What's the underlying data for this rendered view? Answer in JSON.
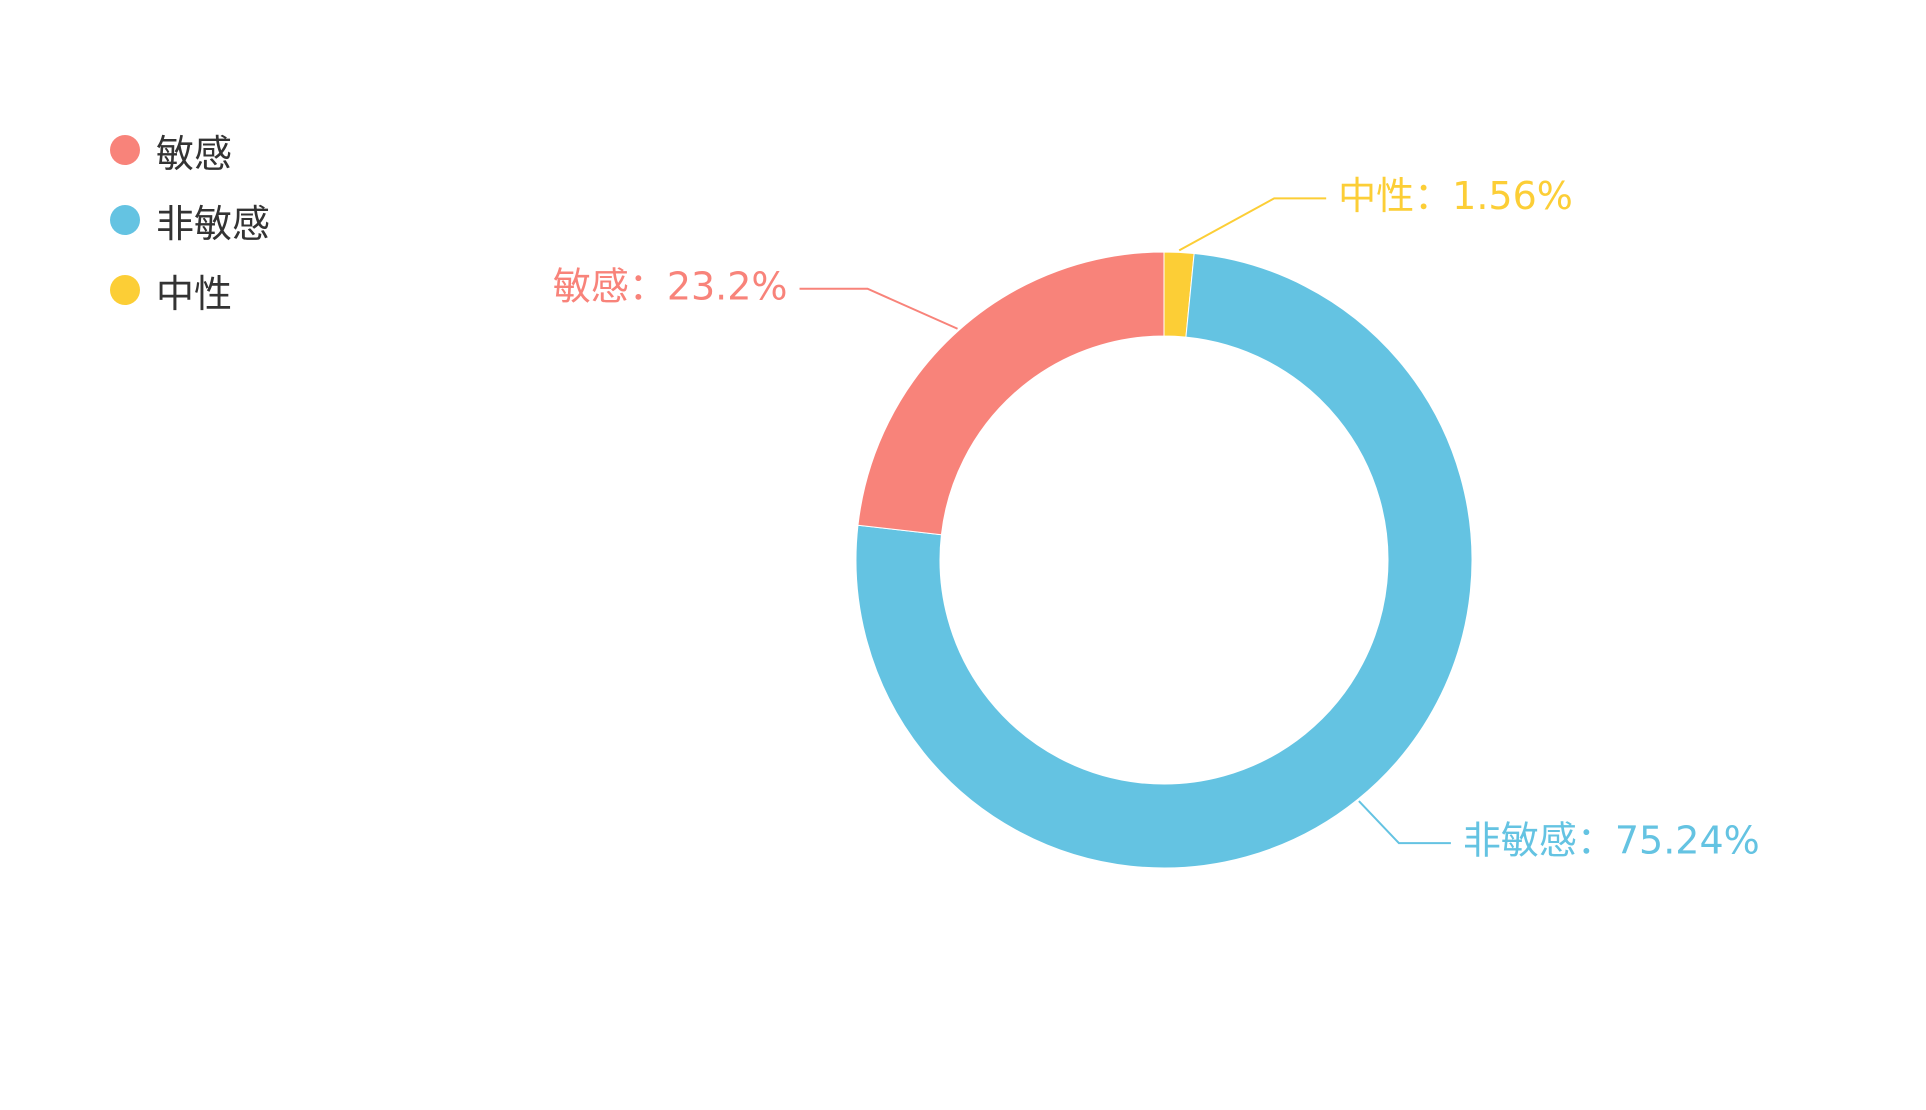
{
  "chart_data": {
    "type": "pie",
    "variant": "donut",
    "legend_position": "top-left",
    "slices": [
      {
        "label": "敏感",
        "value": 23.2,
        "display": "敏感：23.2%",
        "color": "#f8837a"
      },
      {
        "label": "非敏感",
        "value": 75.24,
        "display": "非敏感：75.24%",
        "color": "#64c3e2"
      },
      {
        "label": "中性",
        "value": 1.56,
        "display": "中性：1.56%",
        "color": "#fcce36"
      }
    ]
  }
}
